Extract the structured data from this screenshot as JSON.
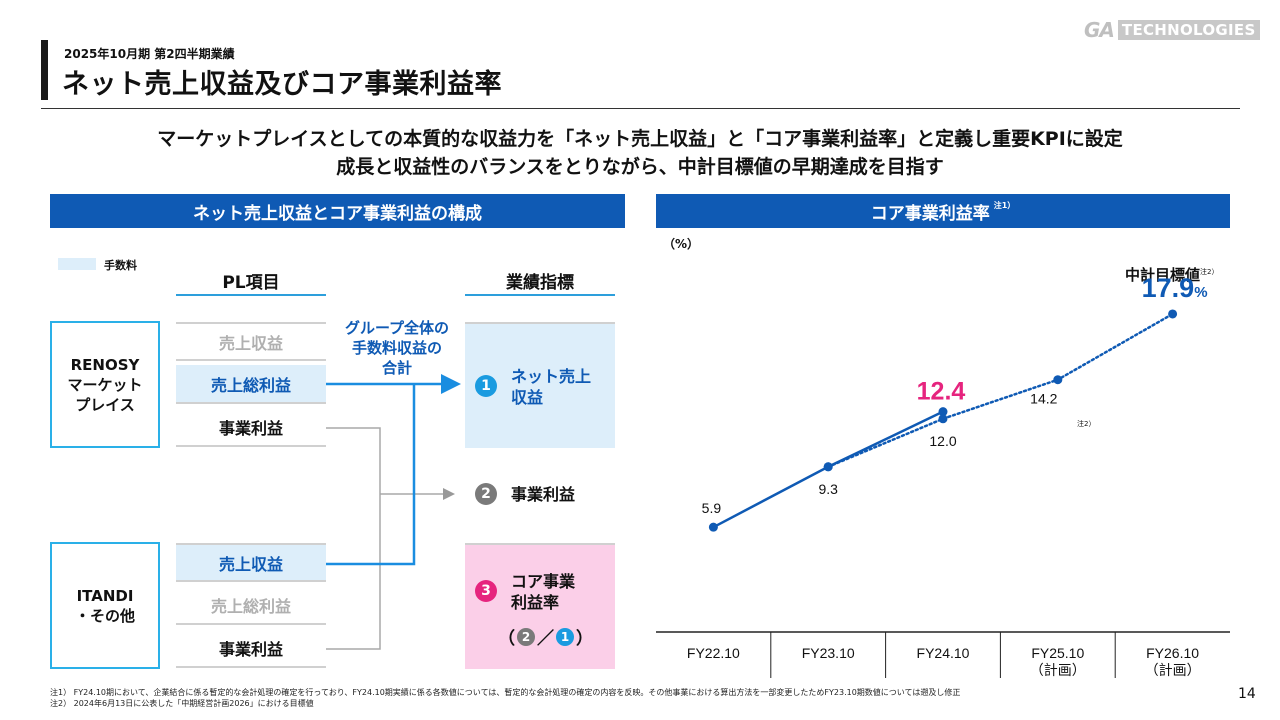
{
  "header": {
    "subtitle": "2025年10月期 第2四半期業績",
    "title": "ネット売上収益及びコア事業利益率",
    "logo_ga": "GA",
    "logo_tech": "TECHNOLOGIES"
  },
  "lead": {
    "line1": "マーケットプレイスとしての本質的な収益力を「ネット売上収益」と「コア事業利益率」と定義し重要KPIに設定",
    "line2": "成長と収益性のバランスをとりながら、中計目標値の早期達成を目指す"
  },
  "left_section": {
    "heading": "ネット売上収益とコア事業利益の構成",
    "legend": "手数料",
    "col_pl": "PL項目",
    "col_kpi": "業績指標",
    "segments": [
      {
        "line1": "RENOSY",
        "line2": "マーケット",
        "line3": "プレイス"
      },
      {
        "line1": "ITANDI",
        "line2": "・その他"
      }
    ],
    "pl_renosy": [
      "売上収益",
      "売上総利益",
      "事業利益"
    ],
    "pl_itandi": [
      "売上収益",
      "売上総利益",
      "事業利益"
    ],
    "group_note": [
      "グループ全体の",
      "手数料収益の",
      "合計"
    ],
    "kpis": [
      {
        "num": "1",
        "line1": "ネット売上",
        "line2": "収益"
      },
      {
        "num": "2",
        "line1": "事業利益"
      },
      {
        "num": "3",
        "line1": "コア事業",
        "line2": "利益率"
      }
    ],
    "formula": {
      "open": "（",
      "n1": "2",
      "slash": "／",
      "n2": "1",
      "close": "）"
    },
    "colors": {
      "blue": "#0f5ab4",
      "light_blue": "#ddeefa",
      "pink": "#fbcfe8",
      "magenta": "#e6247e",
      "cyan": "#2ab0e8"
    }
  },
  "right_section": {
    "heading": "コア事業利益率",
    "heading_note": "注1）",
    "unit": "（%）",
    "target_label": "中計目標値",
    "target_note": "注2）",
    "point_note": "注2）"
  },
  "chart_data": {
    "type": "line",
    "categories": [
      "FY22.10",
      "FY23.10",
      "FY24.10",
      "FY25.10",
      "FY26.10"
    ],
    "category_sub": [
      "",
      "",
      "",
      "（計画）",
      "（計画）"
    ],
    "ylabel": "（%）",
    "series": [
      {
        "style": "solid",
        "values": [
          5.9,
          9.3,
          12.4,
          null,
          null
        ],
        "labels": [
          "5.9",
          "9.3",
          "12.4",
          "",
          ""
        ]
      },
      {
        "style": "dotted",
        "values": [
          null,
          9.3,
          12.0,
          14.2,
          17.9
        ],
        "labels": [
          "",
          "",
          "12.0",
          "14.2",
          "17.9%"
        ]
      }
    ],
    "highlight_color": "#e6247e",
    "line_color": "#0f5ab4"
  },
  "footnotes": [
    "注1） FY24.10期において、企業結合に係る暫定的な会計処理の確定を行っており、FY24.10期実績に係る各数値については、暫定的な会計処理の確定の内容を反映。その他事業における算出方法を一部変更したためFY23.10期数値については遡及し修正",
    "注2） 2024年6月13日に公表した「中期経営計画2026」における目標値"
  ],
  "page_number": "14"
}
